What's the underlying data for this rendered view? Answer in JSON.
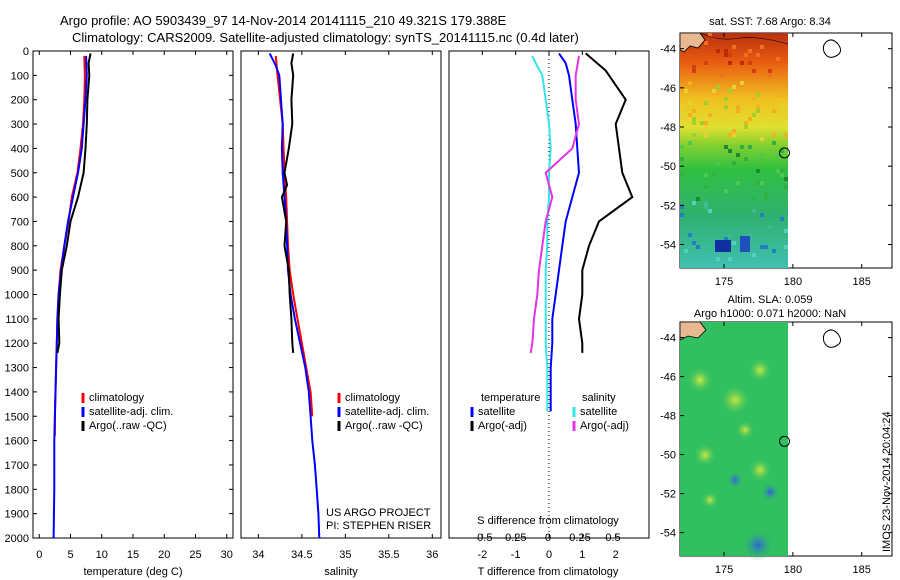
{
  "header": {
    "line1": "Argo profile: AO 5903439_97 14-Nov-2014 20141115_210 49.321S 179.388E",
    "line2": "Climatology: CARS2009. Satellite-adjusted climatology: synTS_20141115.nc (0.4d later)"
  },
  "colors": {
    "red": "#ff0000",
    "blue": "#0000ff",
    "black": "#000000",
    "cyan": "#33e6e6",
    "magenta": "#e633e6"
  },
  "depth_ticks": [
    0,
    100,
    200,
    300,
    400,
    500,
    600,
    700,
    800,
    900,
    1000,
    1100,
    1200,
    1300,
    1400,
    1500,
    1600,
    1700,
    1800,
    1900,
    2000
  ],
  "chart_data": [
    {
      "type": "line",
      "xlabel": "temperature (deg C)",
      "xlim": [
        -1,
        31
      ],
      "ylim": [
        0,
        2000
      ],
      "xticks": [
        0,
        5,
        10,
        15,
        20,
        25,
        30
      ],
      "legend": [
        "climatology",
        "satellite-adj. clim.",
        "Argo(..raw -QC)"
      ],
      "series": [
        {
          "name": "climatology",
          "color": "red",
          "points": [
            [
              7.2,
              20
            ],
            [
              7.3,
              100
            ],
            [
              7.2,
              200
            ],
            [
              7.0,
              300
            ],
            [
              6.6,
              400
            ],
            [
              6.1,
              500
            ],
            [
              5.2,
              600
            ],
            [
              4.7,
              700
            ],
            [
              4.0,
              800
            ],
            [
              3.4,
              900
            ],
            [
              3.1,
              1000
            ],
            [
              2.9,
              1100
            ],
            [
              2.8,
              1200
            ],
            [
              2.7,
              1300
            ],
            [
              2.6,
              1400
            ],
            [
              2.5,
              1500
            ],
            [
              2.5,
              1580
            ]
          ]
        },
        {
          "name": "satellite-adj. clim.",
          "color": "blue",
          "points": [
            [
              7.5,
              20
            ],
            [
              7.6,
              100
            ],
            [
              7.4,
              200
            ],
            [
              7.1,
              300
            ],
            [
              6.8,
              400
            ],
            [
              6.2,
              500
            ],
            [
              5.4,
              600
            ],
            [
              4.6,
              700
            ],
            [
              4.0,
              800
            ],
            [
              3.5,
              900
            ],
            [
              3.1,
              1000
            ],
            [
              2.9,
              1100
            ],
            [
              2.8,
              1200
            ],
            [
              2.7,
              1300
            ],
            [
              2.6,
              1400
            ],
            [
              2.5,
              1500
            ],
            [
              2.4,
              1600
            ],
            [
              2.4,
              1800
            ],
            [
              2.3,
              2000
            ]
          ]
        },
        {
          "name": "Argo(..raw -QC)",
          "color": "black",
          "points": [
            [
              8.2,
              10
            ],
            [
              7.9,
              50
            ],
            [
              8.0,
              100
            ],
            [
              7.7,
              200
            ],
            [
              7.6,
              300
            ],
            [
              7.4,
              400
            ],
            [
              7.1,
              500
            ],
            [
              6.2,
              600
            ],
            [
              5.0,
              700
            ],
            [
              4.4,
              800
            ],
            [
              3.6,
              900
            ],
            [
              3.3,
              1000
            ],
            [
              3.1,
              1100
            ],
            [
              3.2,
              1200
            ],
            [
              2.9,
              1240
            ]
          ]
        }
      ]
    },
    {
      "type": "line",
      "xlabel": "salinity",
      "xlim": [
        33.8,
        36.1
      ],
      "ylim": [
        0,
        2000
      ],
      "xticks": [
        34,
        34.5,
        35,
        35.5,
        36
      ],
      "legend": [
        "climatology",
        "satellite-adj. clim.",
        "Argo(..raw -QC)"
      ],
      "series": [
        {
          "name": "climatology",
          "color": "red",
          "points": [
            [
              34.2,
              20
            ],
            [
              34.22,
              100
            ],
            [
              34.25,
              200
            ],
            [
              34.28,
              300
            ],
            [
              34.29,
              400
            ],
            [
              34.3,
              500
            ],
            [
              34.32,
              600
            ],
            [
              34.33,
              700
            ],
            [
              34.34,
              800
            ],
            [
              34.36,
              900
            ],
            [
              34.4,
              1000
            ],
            [
              34.45,
              1100
            ],
            [
              34.5,
              1200
            ],
            [
              34.55,
              1300
            ],
            [
              34.6,
              1400
            ],
            [
              34.62,
              1500
            ]
          ]
        },
        {
          "name": "satellite-adj. clim.",
          "color": "blue",
          "points": [
            [
              34.13,
              10
            ],
            [
              34.2,
              60
            ],
            [
              34.24,
              100
            ],
            [
              34.26,
              200
            ],
            [
              34.28,
              300
            ],
            [
              34.27,
              400
            ],
            [
              34.28,
              500
            ],
            [
              34.3,
              600
            ],
            [
              34.32,
              700
            ],
            [
              34.33,
              800
            ],
            [
              34.34,
              900
            ],
            [
              34.37,
              1000
            ],
            [
              34.42,
              1100
            ],
            [
              34.48,
              1200
            ],
            [
              34.54,
              1300
            ],
            [
              34.58,
              1400
            ],
            [
              34.6,
              1500
            ],
            [
              34.62,
              1600
            ],
            [
              34.65,
              1700
            ],
            [
              34.67,
              1800
            ],
            [
              34.69,
              1900
            ],
            [
              34.7,
              2000
            ]
          ]
        },
        {
          "name": "Argo(..raw -QC)",
          "color": "black",
          "points": [
            [
              34.4,
              10
            ],
            [
              34.38,
              50
            ],
            [
              34.4,
              100
            ],
            [
              34.38,
              200
            ],
            [
              34.39,
              300
            ],
            [
              34.35,
              400
            ],
            [
              34.3,
              500
            ],
            [
              34.33,
              550
            ],
            [
              34.27,
              600
            ],
            [
              34.32,
              700
            ],
            [
              34.3,
              800
            ],
            [
              34.35,
              900
            ],
            [
              34.36,
              1000
            ],
            [
              34.38,
              1100
            ],
            [
              34.39,
              1200
            ],
            [
              34.4,
              1240
            ]
          ]
        }
      ],
      "annotation": [
        "US ARGO PROJECT",
        "PI: STEPHEN RISER"
      ]
    },
    {
      "type": "line",
      "xlabel": "T difference from climatology",
      "top_label": "S difference from climatology",
      "xlim": [
        -3,
        3
      ],
      "ylim": [
        0,
        2000
      ],
      "xticks": [
        -2,
        -1,
        0,
        1,
        2
      ],
      "s_ticks": [
        "-0.5",
        "-0.25",
        "0",
        "0.25",
        "0.5"
      ],
      "legend_titles": [
        "temperature",
        "salinity"
      ],
      "legend": [
        "satellite",
        "Argo(-adj)",
        "satellite",
        "Argo(-adj)"
      ],
      "series": [
        {
          "name": "temperature satellite",
          "color": "blue",
          "points": [
            [
              0.3,
              10
            ],
            [
              0.5,
              50
            ],
            [
              0.6,
              100
            ],
            [
              0.7,
              200
            ],
            [
              0.8,
              300
            ],
            [
              0.85,
              400
            ],
            [
              0.9,
              500
            ],
            [
              0.7,
              600
            ],
            [
              0.5,
              700
            ],
            [
              0.4,
              800
            ],
            [
              0.3,
              900
            ],
            [
              0.2,
              1000
            ],
            [
              0.1,
              1100
            ],
            [
              0.1,
              1200
            ],
            [
              0.05,
              1300
            ],
            [
              0.05,
              1400
            ],
            [
              0.05,
              1480
            ]
          ]
        },
        {
          "name": "temperature Argo(-adj)",
          "color": "black",
          "points": [
            [
              1.1,
              10
            ],
            [
              1.7,
              80
            ],
            [
              2.3,
              200
            ],
            [
              2.0,
              300
            ],
            [
              2.1,
              400
            ],
            [
              2.2,
              500
            ],
            [
              2.5,
              600
            ],
            [
              1.5,
              700
            ],
            [
              1.2,
              800
            ],
            [
              1.0,
              900
            ],
            [
              1.0,
              1000
            ],
            [
              0.9,
              1100
            ],
            [
              1.0,
              1200
            ],
            [
              1.0,
              1240
            ]
          ]
        },
        {
          "name": "salinity satellite",
          "color": "cyan",
          "points": [
            [
              -0.5,
              20
            ],
            [
              -0.4,
              50
            ],
            [
              -0.2,
              100
            ],
            [
              -0.1,
              200
            ],
            [
              0.0,
              300
            ],
            [
              0.05,
              400
            ],
            [
              0.0,
              500
            ],
            [
              0.0,
              600
            ],
            [
              -0.05,
              700
            ],
            [
              -0.05,
              800
            ],
            [
              -0.1,
              900
            ],
            [
              -0.1,
              1000
            ],
            [
              -0.1,
              1100
            ],
            [
              -0.1,
              1200
            ],
            [
              -0.05,
              1300
            ],
            [
              -0.05,
              1400
            ],
            [
              -0.05,
              1480
            ]
          ]
        },
        {
          "name": "salinity Argo(-adj)",
          "color": "magenta",
          "points": [
            [
              0.9,
              20
            ],
            [
              0.8,
              100
            ],
            [
              0.8,
              200
            ],
            [
              0.9,
              300
            ],
            [
              0.7,
              400
            ],
            [
              -0.1,
              500
            ],
            [
              0.1,
              600
            ],
            [
              -0.1,
              700
            ],
            [
              -0.2,
              800
            ],
            [
              -0.3,
              900
            ],
            [
              -0.35,
              1000
            ],
            [
              -0.45,
              1100
            ],
            [
              -0.5,
              1200
            ],
            [
              -0.55,
              1240
            ]
          ]
        }
      ]
    },
    {
      "type": "heatmap",
      "title": "sat. SST: 7.68  Argo: 8.34",
      "xticks": [
        175,
        180,
        185
      ],
      "yticks": [
        -44,
        -46,
        -48,
        -50,
        -52,
        -54
      ],
      "xlim": [
        171.8,
        187.2
      ],
      "ylim": [
        -55.2,
        -43.2
      ],
      "marker": [
        179.39,
        -49.32
      ]
    },
    {
      "type": "heatmap",
      "title_lines": [
        "Altim. SLA: 0.059",
        "Argo h1000: 0.071 h2000: NaN"
      ],
      "xticks": [
        175,
        180,
        185
      ],
      "yticks": [
        -44,
        -46,
        -48,
        -50,
        -52,
        -54
      ],
      "xlim": [
        171.8,
        187.2
      ],
      "ylim": [
        -55.2,
        -43.2
      ],
      "marker": [
        179.39,
        -49.32
      ]
    }
  ],
  "stamp": "IMOS 23-Nov-2014 20:04:24"
}
